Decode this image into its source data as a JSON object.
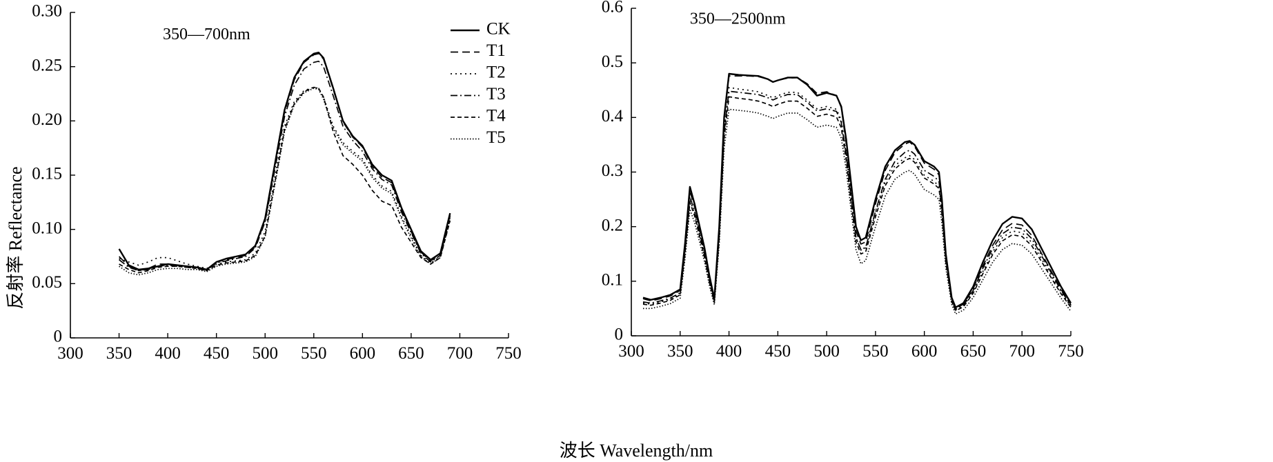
{
  "ylabel": "反射率 Reflectance",
  "xlabel": "波长 Wavelength/nm",
  "legend": [
    "CK",
    "T1",
    "T2",
    "T3",
    "T4",
    "T5"
  ],
  "styles": {
    "CK": {
      "dash": "",
      "width": 2.4
    },
    "T1": {
      "dash": "11 6",
      "width": 1.7
    },
    "T2": {
      "dash": "2 5",
      "width": 1.7
    },
    "T3": {
      "dash": "10 4 2 4",
      "width": 1.7
    },
    "T4": {
      "dash": "6 4",
      "width": 1.7
    },
    "T5": {
      "dash": "1.5 2.5",
      "width": 1.7
    }
  },
  "chart_data": [
    {
      "type": "line",
      "annotation": "350—700nm",
      "xlim": [
        300,
        750
      ],
      "ylim": [
        0,
        0.3
      ],
      "xticks": [
        "300",
        "350",
        "400",
        "450",
        "500",
        "550",
        "600",
        "650",
        "700",
        "750"
      ],
      "yticks": [
        "0",
        "0.05",
        "0.10",
        "0.15",
        "0.20",
        "0.25",
        "0.30"
      ],
      "x": [
        350,
        360,
        370,
        380,
        390,
        400,
        410,
        420,
        430,
        440,
        450,
        460,
        470,
        480,
        490,
        500,
        510,
        520,
        530,
        540,
        550,
        555,
        560,
        570,
        580,
        590,
        600,
        610,
        620,
        630,
        640,
        650,
        660,
        670,
        680,
        690
      ],
      "series": [
        {
          "name": "CK",
          "values": [
            0.082,
            0.067,
            0.063,
            0.064,
            0.066,
            0.068,
            0.067,
            0.066,
            0.065,
            0.063,
            0.07,
            0.073,
            0.075,
            0.077,
            0.085,
            0.11,
            0.16,
            0.21,
            0.24,
            0.255,
            0.262,
            0.263,
            0.258,
            0.23,
            0.2,
            0.186,
            0.177,
            0.16,
            0.15,
            0.145,
            0.12,
            0.1,
            0.08,
            0.072,
            0.078,
            0.115
          ]
        },
        {
          "name": "T1",
          "values": [
            0.075,
            0.066,
            0.062,
            0.064,
            0.068,
            0.068,
            0.067,
            0.066,
            0.065,
            0.063,
            0.07,
            0.072,
            0.074,
            0.076,
            0.084,
            0.108,
            0.158,
            0.208,
            0.238,
            0.254,
            0.261,
            0.262,
            0.257,
            0.229,
            0.199,
            0.185,
            0.176,
            0.158,
            0.148,
            0.143,
            0.118,
            0.098,
            0.079,
            0.071,
            0.077,
            0.113
          ]
        },
        {
          "name": "T2",
          "values": [
            0.073,
            0.07,
            0.067,
            0.07,
            0.074,
            0.074,
            0.071,
            0.068,
            0.066,
            0.064,
            0.068,
            0.07,
            0.071,
            0.072,
            0.078,
            0.098,
            0.148,
            0.195,
            0.218,
            0.228,
            0.231,
            0.23,
            0.222,
            0.195,
            0.18,
            0.172,
            0.165,
            0.15,
            0.14,
            0.135,
            0.112,
            0.094,
            0.076,
            0.069,
            0.075,
            0.11
          ]
        },
        {
          "name": "T3",
          "values": [
            0.072,
            0.065,
            0.062,
            0.063,
            0.066,
            0.067,
            0.066,
            0.065,
            0.064,
            0.062,
            0.069,
            0.071,
            0.073,
            0.075,
            0.083,
            0.107,
            0.155,
            0.204,
            0.233,
            0.248,
            0.254,
            0.255,
            0.25,
            0.223,
            0.195,
            0.182,
            0.172,
            0.156,
            0.146,
            0.141,
            0.116,
            0.097,
            0.078,
            0.07,
            0.076,
            0.112
          ]
        },
        {
          "name": "T4",
          "values": [
            0.068,
            0.063,
            0.06,
            0.062,
            0.065,
            0.066,
            0.066,
            0.065,
            0.064,
            0.062,
            0.067,
            0.069,
            0.07,
            0.071,
            0.076,
            0.094,
            0.143,
            0.192,
            0.216,
            0.227,
            0.231,
            0.23,
            0.222,
            0.19,
            0.168,
            0.16,
            0.15,
            0.136,
            0.126,
            0.122,
            0.102,
            0.088,
            0.074,
            0.068,
            0.074,
            0.108
          ]
        },
        {
          "name": "T5",
          "values": [
            0.066,
            0.06,
            0.058,
            0.06,
            0.063,
            0.064,
            0.064,
            0.063,
            0.063,
            0.061,
            0.066,
            0.068,
            0.069,
            0.07,
            0.075,
            0.093,
            0.141,
            0.19,
            0.215,
            0.226,
            0.23,
            0.229,
            0.22,
            0.193,
            0.178,
            0.17,
            0.163,
            0.148,
            0.138,
            0.133,
            0.11,
            0.092,
            0.075,
            0.068,
            0.074,
            0.109
          ]
        }
      ]
    },
    {
      "type": "line",
      "annotation": "350—2500nm",
      "xlim": [
        300,
        750
      ],
      "ylim": [
        0,
        0.6
      ],
      "xticks": [
        "300",
        "350",
        "400",
        "450",
        "500",
        "550",
        "600",
        "650",
        "700",
        "750"
      ],
      "yticks": [
        "0",
        "0.1",
        "0.2",
        "0.3",
        "0.4",
        "0.5",
        "0.6"
      ],
      "x": [
        312,
        320,
        330,
        340,
        350,
        355,
        360,
        365,
        370,
        375,
        380,
        385,
        390,
        395,
        400,
        410,
        420,
        430,
        440,
        445,
        450,
        460,
        470,
        480,
        490,
        500,
        510,
        515,
        520,
        525,
        530,
        535,
        540,
        550,
        560,
        570,
        580,
        585,
        590,
        600,
        610,
        615,
        618,
        622,
        628,
        632,
        640,
        650,
        660,
        670,
        680,
        690,
        700,
        710,
        720,
        730,
        740,
        750
      ],
      "series": [
        {
          "name": "CK",
          "values": [
            0.07,
            0.066,
            0.07,
            0.075,
            0.085,
            0.17,
            0.273,
            0.24,
            0.2,
            0.16,
            0.11,
            0.068,
            0.2,
            0.4,
            0.48,
            0.478,
            0.477,
            0.476,
            0.47,
            0.465,
            0.468,
            0.473,
            0.473,
            0.46,
            0.44,
            0.445,
            0.44,
            0.42,
            0.36,
            0.28,
            0.2,
            0.175,
            0.18,
            0.25,
            0.31,
            0.34,
            0.355,
            0.357,
            0.35,
            0.32,
            0.31,
            0.3,
            0.25,
            0.15,
            0.07,
            0.052,
            0.06,
            0.09,
            0.135,
            0.175,
            0.205,
            0.218,
            0.215,
            0.195,
            0.16,
            0.125,
            0.09,
            0.06
          ]
        },
        {
          "name": "T1",
          "values": [
            0.068,
            0.064,
            0.068,
            0.073,
            0.083,
            0.165,
            0.265,
            0.235,
            0.195,
            0.155,
            0.107,
            0.066,
            0.195,
            0.395,
            0.476,
            0.476,
            0.476,
            0.475,
            0.47,
            0.465,
            0.468,
            0.472,
            0.473,
            0.462,
            0.444,
            0.447,
            0.44,
            0.418,
            0.352,
            0.27,
            0.192,
            0.168,
            0.172,
            0.242,
            0.303,
            0.336,
            0.351,
            0.355,
            0.347,
            0.316,
            0.305,
            0.295,
            0.245,
            0.147,
            0.068,
            0.05,
            0.058,
            0.086,
            0.128,
            0.166,
            0.194,
            0.206,
            0.203,
            0.184,
            0.151,
            0.118,
            0.085,
            0.057
          ]
        },
        {
          "name": "T2",
          "values": [
            0.06,
            0.058,
            0.062,
            0.067,
            0.077,
            0.155,
            0.25,
            0.222,
            0.185,
            0.146,
            0.1,
            0.062,
            0.182,
            0.37,
            0.455,
            0.452,
            0.45,
            0.447,
            0.44,
            0.436,
            0.44,
            0.446,
            0.446,
            0.432,
            0.416,
            0.42,
            0.415,
            0.395,
            0.335,
            0.256,
            0.18,
            0.157,
            0.161,
            0.226,
            0.282,
            0.312,
            0.326,
            0.33,
            0.323,
            0.294,
            0.283,
            0.274,
            0.228,
            0.138,
            0.064,
            0.047,
            0.055,
            0.08,
            0.118,
            0.154,
            0.18,
            0.192,
            0.189,
            0.171,
            0.141,
            0.11,
            0.08,
            0.054
          ]
        },
        {
          "name": "T3",
          "values": [
            0.062,
            0.06,
            0.064,
            0.069,
            0.079,
            0.158,
            0.255,
            0.226,
            0.188,
            0.149,
            0.102,
            0.064,
            0.185,
            0.375,
            0.448,
            0.446,
            0.444,
            0.442,
            0.436,
            0.432,
            0.436,
            0.442,
            0.442,
            0.428,
            0.412,
            0.416,
            0.411,
            0.391,
            0.332,
            0.254,
            0.18,
            0.158,
            0.162,
            0.228,
            0.287,
            0.32,
            0.336,
            0.34,
            0.333,
            0.303,
            0.292,
            0.283,
            0.235,
            0.142,
            0.066,
            0.049,
            0.056,
            0.083,
            0.124,
            0.16,
            0.187,
            0.199,
            0.196,
            0.178,
            0.147,
            0.115,
            0.083,
            0.056
          ]
        },
        {
          "name": "T4",
          "values": [
            0.058,
            0.056,
            0.06,
            0.065,
            0.075,
            0.152,
            0.245,
            0.218,
            0.181,
            0.143,
            0.098,
            0.061,
            0.178,
            0.362,
            0.438,
            0.435,
            0.433,
            0.43,
            0.424,
            0.42,
            0.424,
            0.43,
            0.43,
            0.417,
            0.402,
            0.406,
            0.401,
            0.381,
            0.322,
            0.245,
            0.172,
            0.15,
            0.154,
            0.218,
            0.275,
            0.306,
            0.321,
            0.325,
            0.318,
            0.289,
            0.278,
            0.27,
            0.224,
            0.135,
            0.063,
            0.046,
            0.053,
            0.078,
            0.114,
            0.149,
            0.174,
            0.185,
            0.182,
            0.165,
            0.136,
            0.106,
            0.077,
            0.052
          ]
        },
        {
          "name": "T5",
          "values": [
            0.05,
            0.05,
            0.054,
            0.059,
            0.069,
            0.142,
            0.232,
            0.206,
            0.171,
            0.135,
            0.092,
            0.057,
            0.168,
            0.343,
            0.415,
            0.413,
            0.411,
            0.408,
            0.402,
            0.398,
            0.402,
            0.408,
            0.408,
            0.396,
            0.382,
            0.386,
            0.382,
            0.362,
            0.305,
            0.23,
            0.158,
            0.132,
            0.138,
            0.2,
            0.256,
            0.287,
            0.3,
            0.303,
            0.296,
            0.268,
            0.258,
            0.25,
            0.206,
            0.124,
            0.058,
            0.04,
            0.047,
            0.07,
            0.103,
            0.135,
            0.158,
            0.169,
            0.166,
            0.15,
            0.123,
            0.096,
            0.069,
            0.045
          ]
        }
      ]
    }
  ]
}
